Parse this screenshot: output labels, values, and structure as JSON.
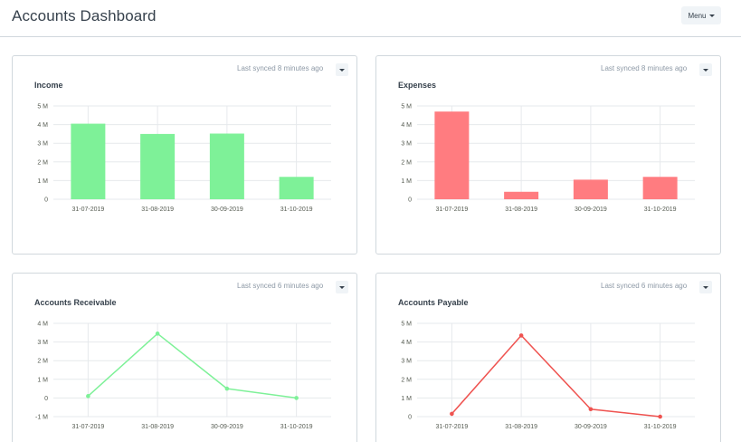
{
  "page": {
    "title": "Accounts Dashboard",
    "menu_label": "Menu"
  },
  "colors": {
    "income": "#7ef198",
    "expenses": "#ff7c80",
    "receivable": "#7ef198",
    "payable": "#ef5350",
    "grid": "#e6e9ec",
    "axis_text": "#555b51"
  },
  "cards": [
    {
      "title": "Income",
      "synced": "Last synced 8 minutes ago",
      "chart_data": {
        "type": "bar",
        "categories": [
          "31-07-2019",
          "31-08-2019",
          "30-09-2019",
          "31-10-2019"
        ],
        "values": [
          4.05,
          3.5,
          3.52,
          1.2
        ],
        "ylim": [
          0,
          5
        ],
        "yticks": [
          0,
          1,
          2,
          3,
          4,
          5
        ],
        "ytick_labels": [
          "0",
          "1 M",
          "2 M",
          "3 M",
          "4 M",
          "5 M"
        ],
        "color": "#7ef198",
        "grid": true
      }
    },
    {
      "title": "Expenses",
      "synced": "Last synced 8 minutes ago",
      "chart_data": {
        "type": "bar",
        "categories": [
          "31-07-2019",
          "31-08-2019",
          "30-09-2019",
          "31-10-2019"
        ],
        "values": [
          4.7,
          0.4,
          1.05,
          1.2
        ],
        "ylim": [
          0,
          5
        ],
        "yticks": [
          0,
          1,
          2,
          3,
          4,
          5
        ],
        "ytick_labels": [
          "0",
          "1 M",
          "2 M",
          "3 M",
          "4 M",
          "5 M"
        ],
        "color": "#ff7c80",
        "grid": true
      }
    },
    {
      "title": "Accounts Receivable",
      "synced": "Last synced 6 minutes ago",
      "chart_data": {
        "type": "line",
        "categories": [
          "31-07-2019",
          "31-08-2019",
          "30-09-2019",
          "31-10-2019"
        ],
        "values": [
          0.1,
          3.45,
          0.5,
          0.0
        ],
        "ylim": [
          -1,
          4
        ],
        "yticks": [
          -1,
          0,
          1,
          2,
          3,
          4
        ],
        "ytick_labels": [
          "-1 M",
          "0",
          "1 M",
          "2 M",
          "3 M",
          "4 M"
        ],
        "color": "#7ef198",
        "grid": true
      }
    },
    {
      "title": "Accounts Payable",
      "synced": "Last synced 6 minutes ago",
      "chart_data": {
        "type": "line",
        "categories": [
          "31-07-2019",
          "31-08-2019",
          "30-09-2019",
          "31-10-2019"
        ],
        "values": [
          0.15,
          4.35,
          0.4,
          0.0
        ],
        "ylim": [
          0,
          5
        ],
        "yticks": [
          0,
          1,
          2,
          3,
          4,
          5
        ],
        "ytick_labels": [
          "0",
          "1 M",
          "2 M",
          "3 M",
          "4 M",
          "5 M"
        ],
        "color": "#ef5350",
        "grid": true
      }
    }
  ]
}
